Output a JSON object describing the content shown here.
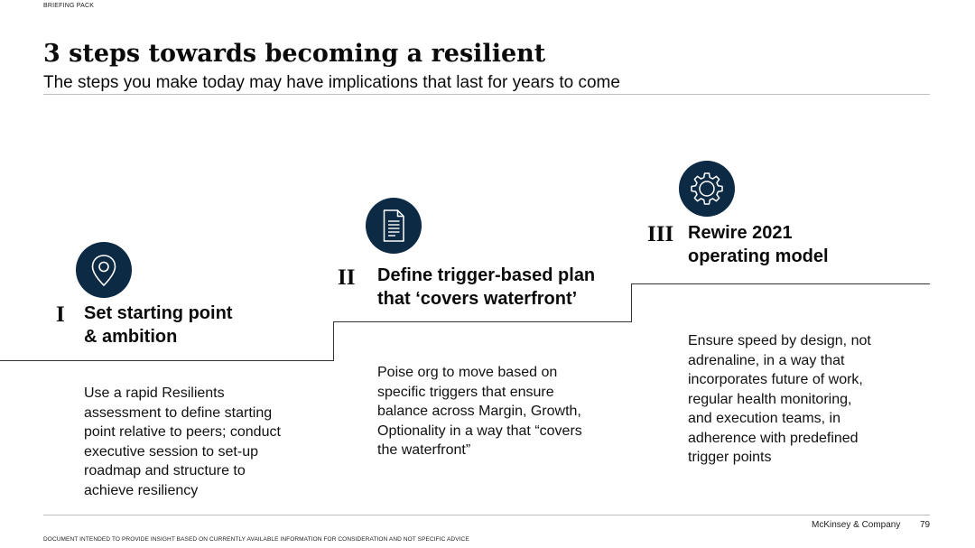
{
  "header": {
    "tag": "BRIEFING PACK",
    "title": "3 steps towards becoming a resilient",
    "subtitle": "The steps you make today may have implications that last for years to come"
  },
  "steps": [
    {
      "numeral": "I",
      "icon": "location-pin-icon",
      "title_line1": "Set starting point",
      "title_line2": "& ambition",
      "description": [
        "Use a rapid Resilients",
        "assessment to define starting",
        "point relative to peers; conduct",
        "executive session to set-up",
        "roadmap and structure to",
        "achieve resiliency"
      ]
    },
    {
      "numeral": "II",
      "icon": "document-icon",
      "title_line1": "Define trigger-based plan",
      "title_line2": "that ‘covers waterfront’",
      "description": [
        "Poise org to move based on",
        "specific triggers that ensure",
        "balance across Margin, Growth,",
        "Optionality in a way that “covers",
        "the waterfront”"
      ]
    },
    {
      "numeral": "III",
      "icon": "gear-icon",
      "title_line1": "Rewire 2021",
      "title_line2": "operating model",
      "description": [
        "Ensure speed by design, not",
        "adrenaline, in a way that",
        "incorporates future of work,",
        "regular health monitoring,",
        "and execution teams, in",
        "adherence with predefined",
        "trigger points"
      ]
    }
  ],
  "footer": {
    "disclaimer": "DOCUMENT INTENDED TO PROVIDE INSIGHT BASED ON CURRENTLY AVAILABLE INFORMATION FOR CONSIDERATION AND NOT SPECIFIC ADVICE",
    "company": "McKinsey & Company",
    "page_number": "79"
  },
  "colors": {
    "icon_background": "#0d2a45",
    "text": "#0b0b0b",
    "rule": "#bdbdbd"
  }
}
